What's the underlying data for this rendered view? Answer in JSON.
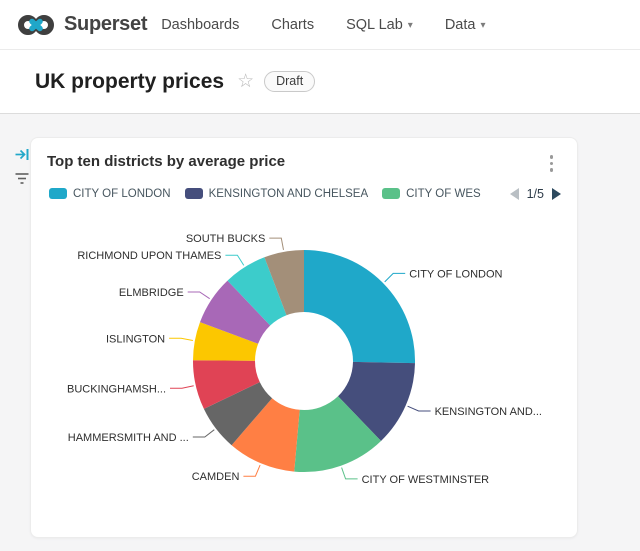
{
  "navbar": {
    "brand": "Superset",
    "items": [
      {
        "label": "Dashboards"
      },
      {
        "label": "Charts"
      },
      {
        "label": "SQL Lab"
      },
      {
        "label": "Data"
      }
    ]
  },
  "icons": {
    "caret_down": "▾",
    "star": "☆"
  },
  "page_header": {
    "title": "UK property prices",
    "status_badge": "Draft"
  },
  "card": {
    "title": "Top ten districts by average price"
  },
  "legend": {
    "items": [
      {
        "label": "CITY OF LONDON",
        "color": "#1FA8C9"
      },
      {
        "label": "KENSINGTON AND CHELSEA",
        "color": "#454E7C"
      },
      {
        "label": "CITY OF WES",
        "color": "#5AC189"
      }
    ],
    "page_indicator": "1/5"
  },
  "chart_data": {
    "type": "pie",
    "title": "Top ten districts by average price",
    "donut": true,
    "start_angle_deg": 0,
    "inner_radius_ratio": 0.44,
    "legend_position": "top",
    "slices": [
      {
        "label": "CITY OF LONDON",
        "value_pct": 25.3,
        "color": "#1FA8C9"
      },
      {
        "label": "KENSINGTON AND...",
        "value_pct": 12.5,
        "color": "#454E7C"
      },
      {
        "label": "CITY OF WESTMINSTER",
        "value_pct": 13.6,
        "color": "#5AC189"
      },
      {
        "label": "CAMDEN",
        "value_pct": 9.9,
        "color": "#FF7F44"
      },
      {
        "label": "HAMMERSMITH AND ...",
        "value_pct": 6.6,
        "color": "#666666"
      },
      {
        "label": "BUCKINGHAMSH...",
        "value_pct": 7.2,
        "color": "#E04355"
      },
      {
        "label": "ISLINGTON",
        "value_pct": 5.6,
        "color": "#FCC700"
      },
      {
        "label": "ELMBRIDGE",
        "value_pct": 7.2,
        "color": "#A868B7"
      },
      {
        "label": "RICHMOND UPON THAMES",
        "value_pct": 6.3,
        "color": "#3CCCCB"
      },
      {
        "label": "SOUTH BUCKS",
        "value_pct": 5.8,
        "color": "#A38F79"
      }
    ]
  },
  "colors": {
    "accent": "#20A7C9",
    "page_bg": "#f5f5f6",
    "nav_text": "#4a4a4a"
  }
}
